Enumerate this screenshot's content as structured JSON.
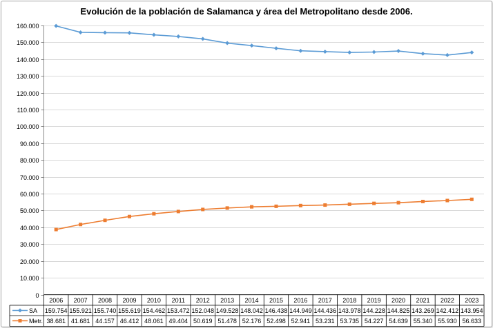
{
  "chart_data": {
    "type": "line",
    "title": "Evolución de la población de Salamanca y área del Metropolitano desde 2006.",
    "categories": [
      "2006",
      "2007",
      "2008",
      "2009",
      "2010",
      "2011",
      "2012",
      "2013",
      "2014",
      "2015",
      "2016",
      "2017",
      "2018",
      "2019",
      "2020",
      "2021",
      "2022",
      "2023"
    ],
    "ylim": [
      0,
      160000
    ],
    "yticks": [
      "0",
      "10.000",
      "20.000",
      "30.000",
      "40.000",
      "50.000",
      "60.000",
      "70.000",
      "80.000",
      "90.000",
      "100.000",
      "110.000",
      "120.000",
      "130.000",
      "140.000",
      "150.000",
      "160.000"
    ],
    "grid": true,
    "legend": "data-table",
    "series": [
      {
        "name": "SA",
        "color": "#5b9bd5",
        "marker": "diamond",
        "values": [
          159754,
          155921,
          155740,
          155619,
          154462,
          153472,
          152048,
          149528,
          148042,
          146438,
          144949,
          144436,
          143978,
          144228,
          144825,
          143269,
          142412,
          143954
        ],
        "labels": [
          "159.754",
          "155.921",
          "155.740",
          "155.619",
          "154.462",
          "153.472",
          "152.048",
          "149.528",
          "148.042",
          "146.438",
          "144.949",
          "144.436",
          "143.978",
          "144.228",
          "144.825",
          "143.269",
          "142.412",
          "143.954"
        ]
      },
      {
        "name": "Metr.",
        "color": "#ed7d31",
        "marker": "square",
        "values": [
          38681,
          41681,
          44157,
          46412,
          48061,
          49404,
          50619,
          51478,
          52176,
          52498,
          52941,
          53231,
          53735,
          54227,
          54639,
          55340,
          55930,
          56633
        ],
        "labels": [
          "38.681",
          "41.681",
          "44.157",
          "46.412",
          "48.061",
          "49.404",
          "50.619",
          "51.478",
          "52.176",
          "52.498",
          "52.941",
          "53.231",
          "53.735",
          "54.227",
          "54.639",
          "55.340",
          "55.930",
          "56.633"
        ]
      }
    ]
  }
}
